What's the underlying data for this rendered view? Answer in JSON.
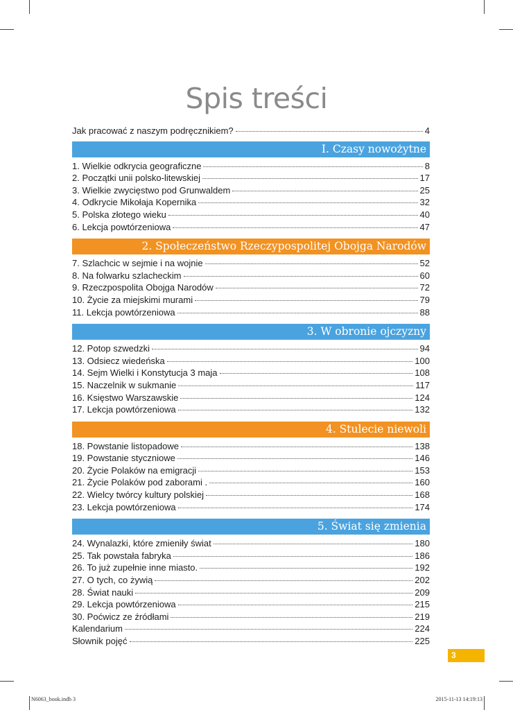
{
  "title": "Spis treści",
  "intro": {
    "label": "Jak pracować z naszym podręcznikiem?",
    "page": "4"
  },
  "sections": [
    {
      "heading": "I. Czasy  nowożytne",
      "color": "#4aa3df",
      "entries": [
        {
          "label": "1. Wielkie odkrycia geograficzne",
          "page": "8"
        },
        {
          "label": "2. Początki unii polsko-litewskiej",
          "page": "17"
        },
        {
          "label": "3. Wielkie zwycięstwo pod Grunwaldem",
          "page": "25"
        },
        {
          "label": "4. Odkrycie Mikołaja Kopernika",
          "page": "32"
        },
        {
          "label": "5. Polska złotego wieku",
          "page": "40"
        },
        {
          "label": "6. Lekcja powtórzeniowa",
          "page": "47"
        }
      ]
    },
    {
      "heading": "2. Społeczeństwo Rzeczypospolitej Obojga Narodów",
      "color": "#f29222",
      "entries": [
        {
          "label": "7. Szlachcic w sejmie i na wojnie",
          "page": "52"
        },
        {
          "label": "8. Na folwarku szlacheckim",
          "page": "60"
        },
        {
          "label": "9. Rzeczpospolita Obojga Narodów",
          "page": "72"
        },
        {
          "label": "10. Życie za miejskimi murami",
          "page": "79"
        },
        {
          "label": "11. Lekcja powtórzeniowa",
          "page": "88"
        }
      ]
    },
    {
      "heading": "3. W obronie ojczyzny",
      "color": "#4aa3df",
      "entries": [
        {
          "label": "12. Potop szwedzki",
          "page": "94"
        },
        {
          "label": "13. Odsiecz wiedeńska",
          "page": "100"
        },
        {
          "label": "14. Sejm Wielki i Konstytucja 3 maja",
          "page": "108"
        },
        {
          "label": "15. Naczelnik w sukmanie",
          "page": "117"
        },
        {
          "label": "16. Księstwo Warszawskie",
          "page": "124"
        },
        {
          "label": "17. Lekcja powtórzeniowa",
          "page": "132"
        }
      ]
    },
    {
      "heading": "4. Stulecie niewoli",
      "color": "#f29222",
      "entries": [
        {
          "label": "18. Powstanie listopadowe",
          "page": "138"
        },
        {
          "label": "19. Powstanie styczniowe",
          "page": "146"
        },
        {
          "label": "20. Życie Polaków na emigracji",
          "page": "153"
        },
        {
          "label": "21. Życie Polaków pod zaborami .",
          "page": "160"
        },
        {
          "label": "22. Wielcy twórcy kultury polskiej",
          "page": "168"
        },
        {
          "label": "23. Lekcja powtórzeniowa",
          "page": "174"
        }
      ]
    },
    {
      "heading": "5. Świat się zmienia",
      "color": "#4aa3df",
      "entries": [
        {
          "label": "24. Wynalazki, które zmieniły świat",
          "page": "180"
        },
        {
          "label": "25. Tak powstała fabryka",
          "page": "186"
        },
        {
          "label": "26. To już zupełnie inne miasto.",
          "page": "192"
        },
        {
          "label": "27. O tych, co żywią",
          "page": "202"
        },
        {
          "label": "28. Świat nauki",
          "page": "209"
        },
        {
          "label": "29. Lekcja powtórzeniowa",
          "page": "215"
        },
        {
          "label": "30. Poćwicz ze źródłami",
          "page": "219"
        },
        {
          "label": "Kalendarium",
          "page": "224"
        },
        {
          "label": "Słownik pojęć",
          "page": "225"
        }
      ]
    }
  ],
  "page_number": "3",
  "page_number_color": "#f5b400",
  "slug": {
    "file": "N6063_book.indb   3",
    "date": "2015-11-13   14:19:13"
  }
}
